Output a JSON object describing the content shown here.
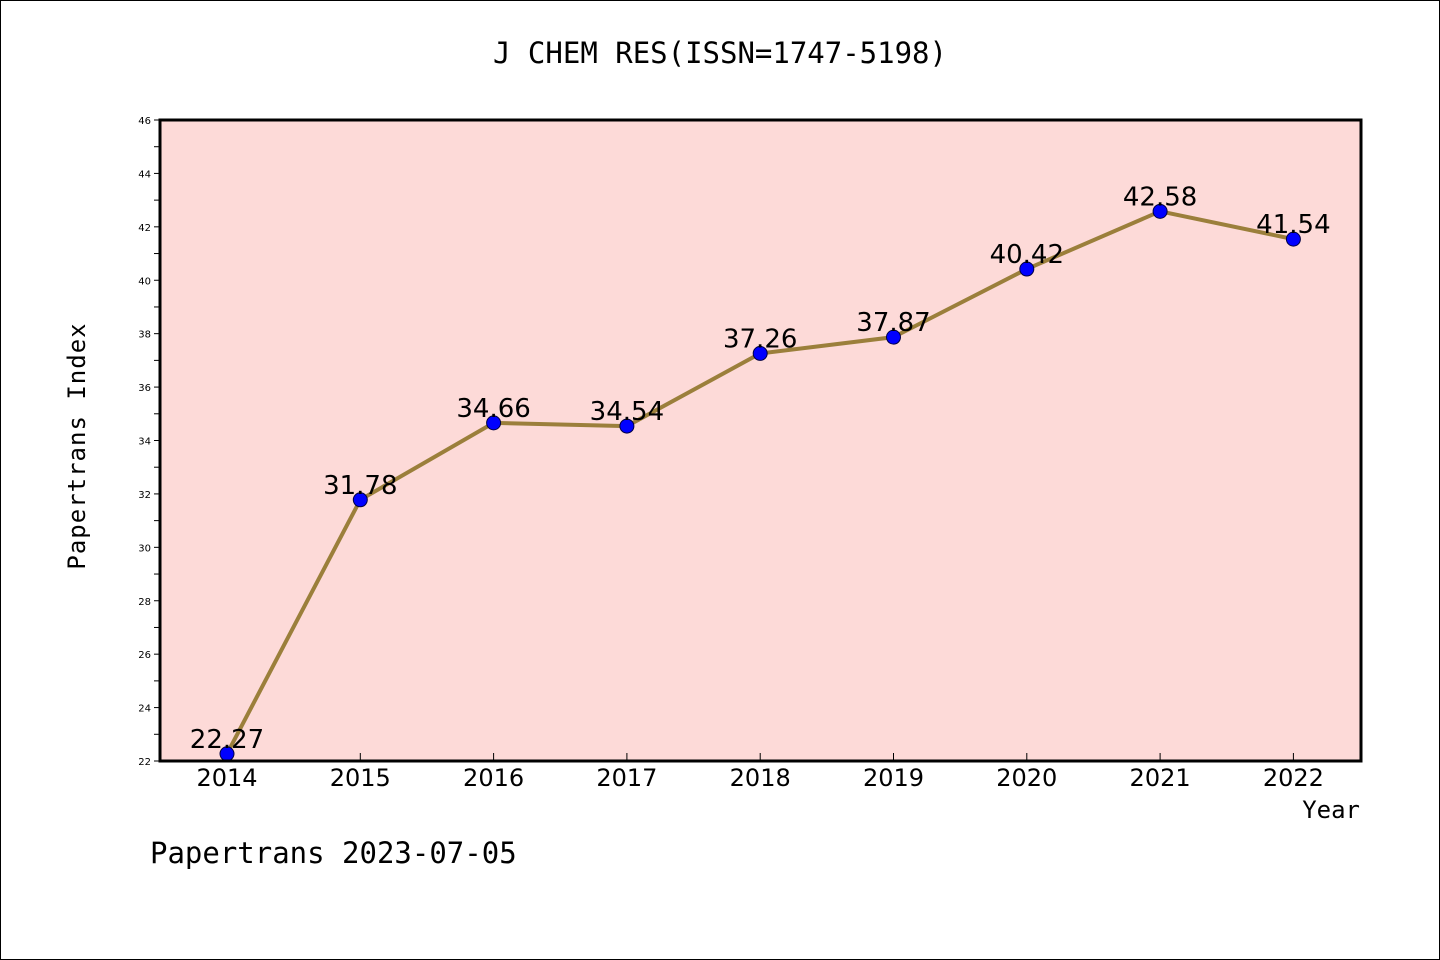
{
  "colors": {
    "plot_background": "#FDDAD8",
    "line": "#9B7F3B",
    "marker": "#0000FF",
    "axis": "#000000"
  },
  "chart_data": {
    "type": "line",
    "title": "J CHEM RES(ISSN=1747-5198)",
    "xlabel": "Year",
    "ylabel": "Papertrans Index",
    "categories": [
      "2014",
      "2015",
      "2016",
      "2017",
      "2018",
      "2019",
      "2020",
      "2021",
      "2022"
    ],
    "series": [
      {
        "values": [
          22.27,
          31.78,
          34.66,
          34.54,
          37.26,
          37.87,
          40.42,
          42.58,
          41.54
        ]
      }
    ],
    "data_labels": [
      "22.27",
      "31.78",
      "34.66",
      "34.54",
      "37.26",
      "37.87",
      "40.42",
      "42.58",
      "41.54"
    ],
    "ylim": [
      22,
      46
    ],
    "yticks": [
      22,
      24,
      26,
      28,
      30,
      32,
      34,
      36,
      38,
      40,
      42,
      44,
      46
    ],
    "grid": false,
    "legend": "none"
  },
  "footer": "Papertrans 2023-07-05"
}
